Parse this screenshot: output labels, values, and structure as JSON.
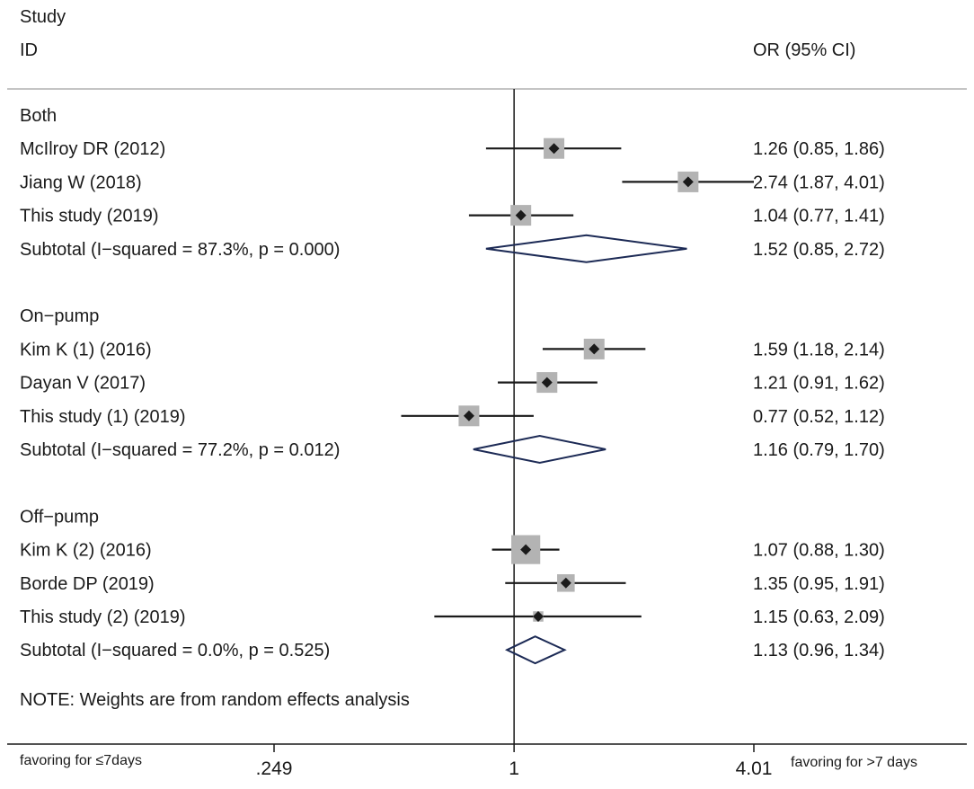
{
  "header": {
    "study": "Study",
    "id": "ID",
    "effect": "OR (95% CI)"
  },
  "note": "NOTE: Weights are from random effects analysis",
  "footer": {
    "left": "favoring for ≤7days",
    "right": "favoring for >7 days"
  },
  "colors": {
    "ink": "#1a1a1a",
    "box": "#b3b3b3",
    "diamond": "#1c2a55",
    "rule": "#b0b0b0"
  },
  "chart_data": {
    "type": "forest",
    "scale": "log",
    "xlim": [
      0.249,
      4.01
    ],
    "ticks": [
      {
        "value": 0.249,
        "label": ".249"
      },
      {
        "value": 1,
        "label": "1"
      },
      {
        "value": 4.01,
        "label": "4.01"
      }
    ],
    "reference_line": 1,
    "groups": [
      {
        "name": "Both",
        "studies": [
          {
            "label": "McIlroy DR (2012)",
            "or": 1.26,
            "lo": 0.85,
            "hi": 1.86,
            "weight": 1.0,
            "text": "1.26 (0.85, 1.86)"
          },
          {
            "label": "Jiang W (2018)",
            "or": 2.74,
            "lo": 1.87,
            "hi": 4.01,
            "weight": 1.0,
            "text": "2.74 (1.87, 4.01)"
          },
          {
            "label": "This study (2019)",
            "or": 1.04,
            "lo": 0.77,
            "hi": 1.41,
            "weight": 1.0,
            "text": "1.04 (0.77, 1.41)"
          }
        ],
        "subtotal": {
          "label": "Subtotal  (I−squared = 87.3%, p = 0.000)",
          "or": 1.52,
          "lo": 0.85,
          "hi": 2.72,
          "text": "1.52 (0.85, 2.72)"
        }
      },
      {
        "name": "On−pump",
        "studies": [
          {
            "label": "Kim K (1) (2016)",
            "or": 1.59,
            "lo": 1.18,
            "hi": 2.14,
            "weight": 1.0,
            "text": "1.59 (1.18, 2.14)"
          },
          {
            "label": "Dayan V (2017)",
            "or": 1.21,
            "lo": 0.91,
            "hi": 1.62,
            "weight": 1.0,
            "text": "1.21 (0.91, 1.62)"
          },
          {
            "label": "This study (1) (2019)",
            "or": 0.77,
            "lo": 0.52,
            "hi": 1.12,
            "weight": 1.0,
            "text": "0.77 (0.52, 1.12)"
          }
        ],
        "subtotal": {
          "label": "Subtotal  (I−squared = 77.2%, p = 0.012)",
          "or": 1.16,
          "lo": 0.79,
          "hi": 1.7,
          "text": "1.16 (0.79, 1.70)"
        }
      },
      {
        "name": "Off−pump",
        "studies": [
          {
            "label": "Kim K (2) (2016)",
            "or": 1.07,
            "lo": 0.88,
            "hi": 1.3,
            "weight": 1.4,
            "text": "1.07 (0.88, 1.30)"
          },
          {
            "label": "Borde DP (2019)",
            "or": 1.35,
            "lo": 0.95,
            "hi": 1.91,
            "weight": 0.85,
            "text": "1.35 (0.95, 1.91)"
          },
          {
            "label": "This study (2) (2019)",
            "or": 1.15,
            "lo": 0.63,
            "hi": 2.09,
            "weight": 0.5,
            "text": "1.15 (0.63, 2.09)"
          }
        ],
        "subtotal": {
          "label": "Subtotal  (I−squared = 0.0%, p = 0.525)",
          "or": 1.13,
          "lo": 0.96,
          "hi": 1.34,
          "text": "1.13 (0.96, 1.34)"
        }
      }
    ]
  }
}
